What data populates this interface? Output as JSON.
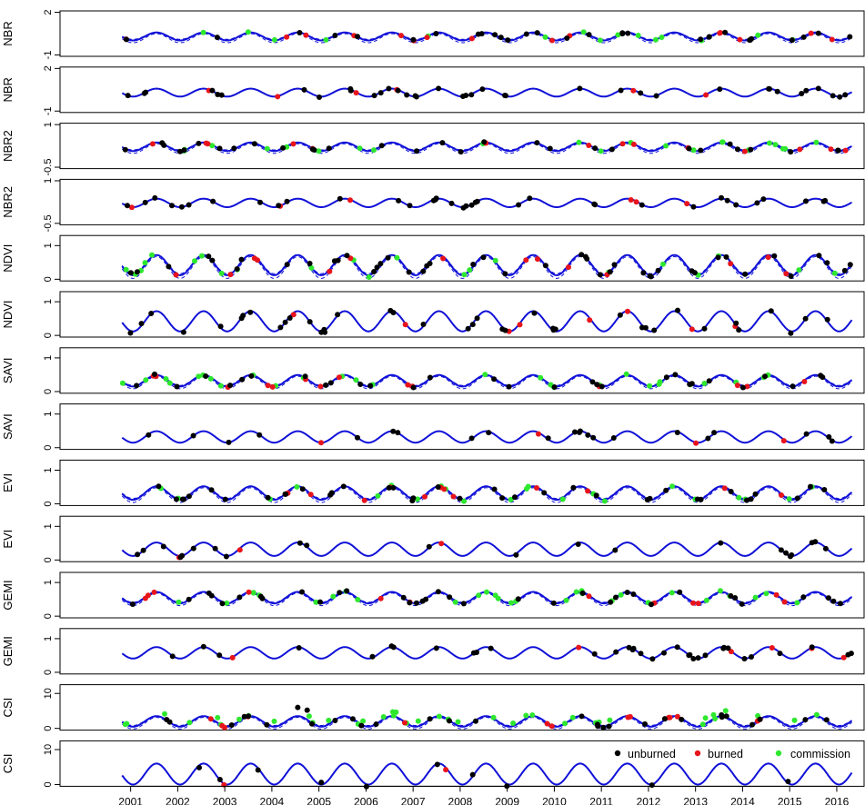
{
  "figure": {
    "x_axis": {
      "tick_labels": [
        "2001",
        "2002",
        "2003",
        "2004",
        "2005",
        "2006",
        "2007",
        "2008",
        "2009",
        "2010",
        "2011",
        "2012",
        "2013",
        "2014",
        "2015",
        "2016"
      ],
      "tick_values": [
        2001,
        2002,
        2003,
        2004,
        2005,
        2006,
        2007,
        2008,
        2009,
        2010,
        2011,
        2012,
        2013,
        2014,
        2015,
        2016
      ],
      "range": [
        1999.5,
        2016.6
      ]
    },
    "legend": {
      "placement": "inside bottom-right of last panel",
      "entries": [
        {
          "label": "unburned",
          "color": "#000000"
        },
        {
          "label": "burned",
          "color": "#e8141b"
        },
        {
          "label": "commission",
          "color": "#2ee82e"
        }
      ]
    },
    "colors": {
      "fit": "#1010d8",
      "unburned": "#000000",
      "burned": "#e8141b",
      "commission": "#2ee82e"
    }
  },
  "chart_data": [
    {
      "type": "line",
      "ylabel": "NBR",
      "yticks": [
        -1,
        2
      ],
      "ylim": [
        -1.1,
        2.1
      ],
      "series_mean": 0.3,
      "series_amp": 0.28,
      "band": 0.12,
      "points": {
        "unburned": 30,
        "burned": 15,
        "commission": 15
      }
    },
    {
      "type": "line",
      "ylabel": "NBR",
      "yticks": [
        -1,
        2
      ],
      "ylim": [
        -1.1,
        2.1
      ],
      "series_mean": 0.3,
      "series_amp": 0.28,
      "band": 0.0,
      "points": {
        "unburned": 38,
        "burned": 6,
        "commission": 0
      }
    },
    {
      "type": "line",
      "ylabel": "NBR2",
      "yticks": [
        -0.5,
        1
      ],
      "ylim": [
        -0.55,
        1.05
      ],
      "series_mean": 0.22,
      "series_amp": 0.15,
      "band": 0.06,
      "points": {
        "unburned": 30,
        "burned": 14,
        "commission": 22
      }
    },
    {
      "type": "line",
      "ylabel": "NBR2",
      "yticks": [
        -0.5,
        1
      ],
      "ylim": [
        -0.55,
        1.05
      ],
      "series_mean": 0.22,
      "series_amp": 0.15,
      "band": 0.0,
      "points": {
        "unburned": 36,
        "burned": 6,
        "commission": 0
      }
    },
    {
      "type": "line",
      "ylabel": "NDVI",
      "yticks": [
        0,
        1
      ],
      "ylim": [
        -0.05,
        1.3
      ],
      "series_mean": 0.42,
      "series_amp": 0.3,
      "band": 0.07,
      "points": {
        "unburned": 45,
        "burned": 14,
        "commission": 22
      }
    },
    {
      "type": "line",
      "ylabel": "NDVI",
      "yticks": [
        0,
        1
      ],
      "ylim": [
        -0.05,
        1.3
      ],
      "series_mean": 0.42,
      "series_amp": 0.3,
      "band": 0.0,
      "points": {
        "unburned": 40,
        "burned": 8,
        "commission": 0
      }
    },
    {
      "type": "line",
      "ylabel": "SAVI",
      "yticks": [
        0,
        1
      ],
      "ylim": [
        -0.05,
        1.3
      ],
      "series_mean": 0.32,
      "series_amp": 0.17,
      "band": 0.05,
      "points": {
        "unburned": 30,
        "burned": 14,
        "commission": 28
      }
    },
    {
      "type": "line",
      "ylabel": "SAVI",
      "yticks": [
        0,
        1
      ],
      "ylim": [
        -0.05,
        1.3
      ],
      "series_mean": 0.32,
      "series_amp": 0.17,
      "band": 0.0,
      "points": {
        "unburned": 22,
        "burned": 4,
        "commission": 0
      }
    },
    {
      "type": "line",
      "ylabel": "EVI",
      "yticks": [
        0,
        1
      ],
      "ylim": [
        -0.05,
        1.3
      ],
      "series_mean": 0.32,
      "series_amp": 0.2,
      "band": 0.06,
      "points": {
        "unburned": 38,
        "burned": 12,
        "commission": 22
      }
    },
    {
      "type": "line",
      "ylabel": "EVI",
      "yticks": [
        0,
        1
      ],
      "ylim": [
        -0.05,
        1.3
      ],
      "series_mean": 0.32,
      "series_amp": 0.2,
      "band": 0.0,
      "points": {
        "unburned": 22,
        "burned": 3,
        "commission": 0
      }
    },
    {
      "type": "line",
      "ylabel": "GEMI",
      "yticks": [
        0,
        1
      ],
      "ylim": [
        -0.05,
        1.3
      ],
      "series_mean": 0.55,
      "series_amp": 0.17,
      "band": 0.05,
      "points": {
        "unburned": 36,
        "burned": 12,
        "commission": 30
      }
    },
    {
      "type": "line",
      "ylabel": "GEMI",
      "yticks": [
        0,
        1
      ],
      "ylim": [
        -0.05,
        1.3
      ],
      "series_mean": 0.58,
      "series_amp": 0.17,
      "band": 0.0,
      "points": {
        "unburned": 34,
        "burned": 6,
        "commission": 0
      }
    },
    {
      "type": "line",
      "ylabel": "CSI",
      "yticks": [
        0,
        10
      ],
      "ylim": [
        -0.5,
        12.5
      ],
      "series_mean": 2.0,
      "series_amp": 1.5,
      "band": 0.5,
      "points": {
        "unburned": 30,
        "burned": 14,
        "commission": 40
      },
      "extra_unburned": [
        [
          2004.55,
          6.0
        ],
        [
          2004.75,
          5.2
        ]
      ]
    },
    {
      "type": "line",
      "ylabel": "CSI",
      "yticks": [
        0,
        10
      ],
      "ylim": [
        -0.5,
        12.5
      ],
      "series_mean": 3.0,
      "series_amp": 3.0,
      "band": 0.0,
      "points": {
        "unburned": 10,
        "burned": 2,
        "commission": 0
      }
    }
  ]
}
